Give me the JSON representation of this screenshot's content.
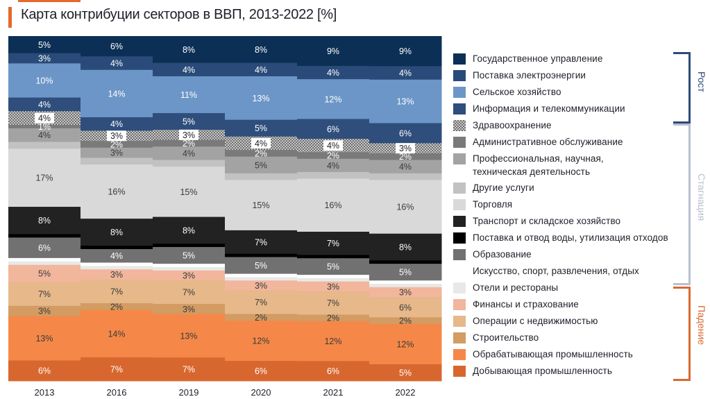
{
  "title": "Карта контрибуции секторов в ВВП, 2013-2022 [%]",
  "colors": {
    "accent": "#e3692c",
    "growth": "#2c4a78",
    "stagnation": "#b8bfcf",
    "decline": "#d9692e"
  },
  "groups": [
    {
      "label": "Рост",
      "color": "#2c4a78"
    },
    {
      "label": "Стагнация",
      "color": "#b8bfcf"
    },
    {
      "label": "Падение",
      "color": "#d9692e"
    }
  ],
  "chart_data": {
    "type": "stacked-bar-100",
    "title": "Карта контрибуции секторов в ВВП, 2013-2022 [%]",
    "unit": "%",
    "categories": [
      "2013",
      "2016",
      "2019",
      "2020",
      "2021",
      "2022"
    ],
    "series": [
      {
        "name": "Государственное управление",
        "color": "#0c2f55",
        "values": [
          5,
          6,
          8,
          8,
          9,
          9
        ],
        "labels": [
          "5%",
          "6%",
          "8%",
          "8%",
          "9%",
          "9%"
        ]
      },
      {
        "name": "Поставка электроэнергии",
        "color": "#2a4b79",
        "values": [
          3,
          4,
          4,
          4,
          4,
          4
        ],
        "labels": [
          "3%",
          "4%",
          "4%",
          "4%",
          "4%",
          "4%"
        ]
      },
      {
        "name": "Сельское хозяйство",
        "color": "#6c96c7",
        "values": [
          10,
          14,
          11,
          13,
          12,
          13
        ],
        "labels": [
          "10%",
          "14%",
          "11%",
          "13%",
          "12%",
          "13%"
        ]
      },
      {
        "name": "Информация и телекоммуникации",
        "color": "#2f4e7c",
        "values": [
          4,
          4,
          5,
          5,
          6,
          6
        ],
        "labels": [
          "4%",
          "4%",
          "5%",
          "5%",
          "6%",
          "6%"
        ]
      },
      {
        "name": "Здравоохранение",
        "color": "#8b8b8b",
        "pattern": true,
        "values": [
          4,
          3,
          3,
          4,
          4,
          3
        ],
        "labels": [
          "4%",
          "3%",
          "3%",
          "4%",
          "4%",
          "3%"
        ]
      },
      {
        "name": "Административное обслуживание",
        "color": "#7a7a7a",
        "values": [
          1,
          2,
          2,
          2,
          2,
          2
        ],
        "labels": [
          "1%",
          "2%",
          "2%",
          "2%",
          "2%",
          "2%"
        ]
      },
      {
        "name": "Профессиональная, научная, техническая деятельность",
        "color": "#a3a3a3",
        "values": [
          4,
          3,
          4,
          5,
          4,
          4
        ],
        "labels": [
          "4%",
          "3%",
          "4%",
          "5%",
          "4%",
          "4%"
        ]
      },
      {
        "name": "Другие услуги",
        "color": "#c2c2c2",
        "values": [
          2,
          2,
          2,
          2,
          2,
          2
        ],
        "labels": [
          "",
          "",
          "",
          "",
          "",
          ""
        ]
      },
      {
        "name": "Торговля",
        "color": "#d9d9d9",
        "values": [
          17,
          16,
          15,
          15,
          16,
          16
        ],
        "labels": [
          "17%",
          "16%",
          "15%",
          "15%",
          "16%",
          "16%"
        ]
      },
      {
        "name": "Транспорт и складское хозяйство",
        "color": "#222222",
        "values": [
          8,
          8,
          8,
          7,
          7,
          8
        ],
        "labels": [
          "8%",
          "8%",
          "8%",
          "7%",
          "7%",
          "8%"
        ]
      },
      {
        "name": "Поставка и отвод воды, утилизация отходов",
        "color": "#000000",
        "values": [
          1,
          1,
          1,
          1,
          1,
          1
        ],
        "labels": [
          "",
          "",
          "",
          "",
          "",
          ""
        ]
      },
      {
        "name": "Образование",
        "color": "#717171",
        "values": [
          6,
          4,
          5,
          5,
          5,
          5
        ],
        "labels": [
          "6%",
          "4%",
          "5%",
          "5%",
          "5%",
          "5%"
        ]
      },
      {
        "name": "Искусство, спорт, развлечения, отдых",
        "color": "#ffffff",
        "values": [
          1,
          1,
          1,
          1,
          1,
          1
        ],
        "labels": [
          "",
          "",
          "",
          "",
          "",
          ""
        ]
      },
      {
        "name": "Отели и рестораны",
        "color": "#e8e8e8",
        "values": [
          1,
          1,
          1,
          1,
          1,
          1
        ],
        "labels": [
          "",
          "",
          "",
          "",
          "",
          ""
        ]
      },
      {
        "name": "Финансы и страхование",
        "color": "#f1b69c",
        "values": [
          5,
          3,
          3,
          3,
          3,
          3
        ],
        "labels": [
          "5%",
          "3%",
          "3%",
          "3%",
          "3%",
          "3%"
        ]
      },
      {
        "name": "Операции с недвижимостью",
        "color": "#e6b88a",
        "values": [
          7,
          7,
          7,
          7,
          7,
          6
        ],
        "labels": [
          "7%",
          "7%",
          "7%",
          "7%",
          "7%",
          "6%"
        ]
      },
      {
        "name": "Строительство",
        "color": "#d29c63",
        "values": [
          3,
          2,
          3,
          2,
          2,
          2
        ],
        "labels": [
          "3%",
          "2%",
          "3%",
          "2%",
          "2%",
          "2%"
        ]
      },
      {
        "name": "Обрабатывающая промышленность",
        "color": "#f58848",
        "values": [
          13,
          14,
          13,
          12,
          12,
          12
        ],
        "labels": [
          "13%",
          "14%",
          "13%",
          "12%",
          "12%",
          "12%"
        ]
      },
      {
        "name": "Добывающая промышленность",
        "color": "#d8672f",
        "values": [
          6,
          7,
          7,
          6,
          6,
          5
        ],
        "labels": [
          "6%",
          "7%",
          "7%",
          "6%",
          "6%",
          "5%"
        ]
      }
    ]
  }
}
